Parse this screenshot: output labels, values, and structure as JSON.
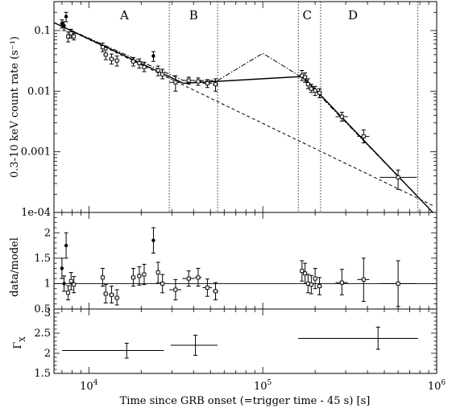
{
  "chart_data": [
    {
      "type": "line",
      "panel": "light-curve",
      "xlabel": "Time since GRB onset (=trigger time - 45 s) [s]",
      "ylabel": "0.3-10 keV count rate (s⁻¹)",
      "xscale": "log",
      "yscale": "log",
      "xlim": [
        6300,
        1000000
      ],
      "ylim": [
        0.0001,
        0.3
      ],
      "x_ticks": [
        {
          "v": 10000,
          "label": "10",
          "exp": "4"
        },
        {
          "v": 100000,
          "label": "10",
          "exp": "5"
        },
        {
          "v": 1000000,
          "label": "10",
          "exp": "6"
        }
      ],
      "y_ticks": [
        {
          "v": 0.1,
          "label": "0.1"
        },
        {
          "v": 0.01,
          "label": "0.01"
        },
        {
          "v": 0.001,
          "label": "0.001"
        },
        {
          "v": 0.0001,
          "label": "1e-04"
        }
      ],
      "region_boundaries": [
        29000,
        55000,
        160000,
        215000,
        780000
      ],
      "regions": [
        {
          "label": "A",
          "x": 16000
        },
        {
          "label": "B",
          "x": 40000
        },
        {
          "label": "C",
          "x": 180000
        },
        {
          "label": "D",
          "x": 330000
        }
      ],
      "points": [
        {
          "x": 7000,
          "y": 0.13,
          "xlo": 6900,
          "xhi": 7100,
          "ylo": 0.11,
          "yhi": 0.15,
          "marker": "dot"
        },
        {
          "x": 7200,
          "y": 0.12,
          "xlo": 7100,
          "xhi": 7300,
          "ylo": 0.1,
          "yhi": 0.14,
          "marker": "dot"
        },
        {
          "x": 7400,
          "y": 0.17,
          "xlo": 7300,
          "xhi": 7500,
          "ylo": 0.14,
          "yhi": 0.2,
          "marker": "dot"
        },
        {
          "x": 7600,
          "y": 0.08,
          "xlo": 7450,
          "xhi": 7750,
          "ylo": 0.065,
          "yhi": 0.095,
          "marker": "square"
        },
        {
          "x": 7900,
          "y": 0.09,
          "xlo": 7700,
          "xhi": 8100,
          "ylo": 0.075,
          "yhi": 0.105,
          "marker": "square"
        },
        {
          "x": 8200,
          "y": 0.08,
          "xlo": 8000,
          "xhi": 8400,
          "ylo": 0.07,
          "yhi": 0.09,
          "marker": "square"
        },
        {
          "x": 12000,
          "y": 0.053,
          "xlo": 11700,
          "xhi": 12300,
          "ylo": 0.045,
          "yhi": 0.062,
          "marker": "square"
        },
        {
          "x": 12500,
          "y": 0.04,
          "xlo": 12100,
          "xhi": 12900,
          "ylo": 0.033,
          "yhi": 0.048,
          "marker": "square"
        },
        {
          "x": 13500,
          "y": 0.034,
          "xlo": 13000,
          "xhi": 14000,
          "ylo": 0.028,
          "yhi": 0.041,
          "marker": "square"
        },
        {
          "x": 14500,
          "y": 0.032,
          "xlo": 14000,
          "xhi": 15000,
          "ylo": 0.026,
          "yhi": 0.038,
          "marker": "square"
        },
        {
          "x": 18000,
          "y": 0.031,
          "xlo": 17400,
          "xhi": 18600,
          "ylo": 0.026,
          "yhi": 0.036,
          "marker": "square"
        },
        {
          "x": 19500,
          "y": 0.029,
          "xlo": 18900,
          "xhi": 20100,
          "ylo": 0.024,
          "yhi": 0.034,
          "marker": "square"
        },
        {
          "x": 20800,
          "y": 0.025,
          "xlo": 20200,
          "xhi": 21400,
          "ylo": 0.021,
          "yhi": 0.03,
          "marker": "square"
        },
        {
          "x": 23500,
          "y": 0.038,
          "xlo": 23000,
          "xhi": 24000,
          "ylo": 0.031,
          "yhi": 0.045,
          "marker": "dot"
        },
        {
          "x": 25000,
          "y": 0.022,
          "xlo": 24300,
          "xhi": 25700,
          "ylo": 0.018,
          "yhi": 0.026,
          "marker": "square"
        },
        {
          "x": 26500,
          "y": 0.019,
          "xlo": 25700,
          "xhi": 27300,
          "ylo": 0.016,
          "yhi": 0.023,
          "marker": "square"
        },
        {
          "x": 31500,
          "y": 0.014,
          "xlo": 29000,
          "xhi": 34000,
          "ylo": 0.01,
          "yhi": 0.018,
          "marker": "square"
        },
        {
          "x": 37500,
          "y": 0.015,
          "xlo": 34500,
          "xhi": 40500,
          "ylo": 0.013,
          "yhi": 0.017,
          "marker": "square"
        },
        {
          "x": 42500,
          "y": 0.0145,
          "xlo": 40500,
          "xhi": 44500,
          "ylo": 0.0125,
          "yhi": 0.0165,
          "marker": "square"
        },
        {
          "x": 48000,
          "y": 0.0135,
          "xlo": 45000,
          "xhi": 51000,
          "ylo": 0.0115,
          "yhi": 0.0155,
          "marker": "square"
        },
        {
          "x": 53500,
          "y": 0.013,
          "xlo": 51500,
          "xhi": 55500,
          "ylo": 0.01,
          "yhi": 0.016,
          "marker": "square"
        },
        {
          "x": 168000,
          "y": 0.018,
          "xlo": 163000,
          "xhi": 173000,
          "ylo": 0.015,
          "yhi": 0.022,
          "marker": "square"
        },
        {
          "x": 175000,
          "y": 0.017,
          "xlo": 170000,
          "xhi": 180000,
          "ylo": 0.014,
          "yhi": 0.02,
          "marker": "square"
        },
        {
          "x": 182000,
          "y": 0.013,
          "xlo": 177000,
          "xhi": 187000,
          "ylo": 0.011,
          "yhi": 0.016,
          "marker": "square"
        },
        {
          "x": 190000,
          "y": 0.011,
          "xlo": 184000,
          "xhi": 196000,
          "ylo": 0.0095,
          "yhi": 0.013,
          "marker": "square"
        },
        {
          "x": 200000,
          "y": 0.0102,
          "xlo": 194000,
          "xhi": 206000,
          "ylo": 0.0085,
          "yhi": 0.012,
          "marker": "square"
        },
        {
          "x": 212000,
          "y": 0.0094,
          "xlo": 205000,
          "xhi": 219000,
          "ylo": 0.0078,
          "yhi": 0.011,
          "marker": "square"
        },
        {
          "x": 285000,
          "y": 0.0038,
          "xlo": 262000,
          "xhi": 308000,
          "ylo": 0.0032,
          "yhi": 0.0045,
          "marker": "square"
        },
        {
          "x": 380000,
          "y": 0.0018,
          "xlo": 350000,
          "xhi": 410000,
          "ylo": 0.0014,
          "yhi": 0.0023,
          "marker": "square"
        },
        {
          "x": 600000,
          "y": 0.00038,
          "xlo": 470000,
          "xhi": 770000,
          "ylo": 0.00024,
          "yhi": 0.0005,
          "marker": "square"
        }
      ],
      "models": [
        {
          "style": "solid",
          "points": [
            [
              6300,
              0.135
            ],
            [
              35000,
              0.0135
            ],
            [
              170000,
              0.0175
            ],
            [
              950000,
              0.0001
            ]
          ]
        },
        {
          "style": "dashed",
          "points": [
            [
              6300,
              0.135
            ],
            [
              950000,
              0.00013
            ]
          ]
        },
        {
          "style": "dashdot",
          "points": [
            [
              6300,
              0.135
            ],
            [
              35000,
              0.015
            ],
            [
              55000,
              0.015
            ],
            [
              100000,
              0.042
            ],
            [
              170000,
              0.0165
            ],
            [
              950000,
              0.0001
            ]
          ]
        }
      ]
    },
    {
      "type": "scatter",
      "panel": "ratio",
      "ylabel": "data/model",
      "xscale": "log",
      "xlim": [
        6300,
        1000000
      ],
      "ylim": [
        0.5,
        2.4
      ],
      "reference_line": 1,
      "y_ticks": [
        {
          "v": 0.5,
          "label": "0.5"
        },
        {
          "v": 1,
          "label": "1"
        },
        {
          "v": 1.5,
          "label": "1.5"
        },
        {
          "v": 2,
          "label": "2"
        }
      ],
      "points": [
        {
          "x": 7000,
          "y": 1.3,
          "xlo": 6900,
          "xhi": 7100,
          "ylo": 1.1,
          "yhi": 1.5,
          "marker": "dot"
        },
        {
          "x": 7200,
          "y": 1.0,
          "xlo": 7100,
          "xhi": 7300,
          "ylo": 0.85,
          "yhi": 1.15,
          "marker": "dot"
        },
        {
          "x": 7400,
          "y": 1.75,
          "xlo": 7300,
          "xhi": 7500,
          "ylo": 1.5,
          "yhi": 2.0,
          "marker": "dot"
        },
        {
          "x": 7600,
          "y": 0.82,
          "xlo": 7450,
          "xhi": 7750,
          "ylo": 0.68,
          "yhi": 0.96,
          "marker": "square"
        },
        {
          "x": 7900,
          "y": 1.05,
          "xlo": 7700,
          "xhi": 8100,
          "ylo": 0.88,
          "yhi": 1.22,
          "marker": "square"
        },
        {
          "x": 8200,
          "y": 0.98,
          "xlo": 8000,
          "xhi": 8400,
          "ylo": 0.82,
          "yhi": 1.14,
          "marker": "square"
        },
        {
          "x": 12000,
          "y": 1.12,
          "xlo": 11700,
          "xhi": 12300,
          "ylo": 0.95,
          "yhi": 1.3,
          "marker": "square"
        },
        {
          "x": 12500,
          "y": 0.8,
          "xlo": 12100,
          "xhi": 12900,
          "ylo": 0.62,
          "yhi": 0.98,
          "marker": "square"
        },
        {
          "x": 13500,
          "y": 0.78,
          "xlo": 13000,
          "xhi": 14000,
          "ylo": 0.62,
          "yhi": 0.95,
          "marker": "square"
        },
        {
          "x": 14500,
          "y": 0.72,
          "xlo": 14000,
          "xhi": 15000,
          "ylo": 0.58,
          "yhi": 0.88,
          "marker": "square"
        },
        {
          "x": 18000,
          "y": 1.12,
          "xlo": 17400,
          "xhi": 18600,
          "ylo": 0.95,
          "yhi": 1.3,
          "marker": "square"
        },
        {
          "x": 19500,
          "y": 1.15,
          "xlo": 18900,
          "xhi": 20100,
          "ylo": 0.97,
          "yhi": 1.33,
          "marker": "square"
        },
        {
          "x": 20800,
          "y": 1.18,
          "xlo": 20200,
          "xhi": 21400,
          "ylo": 0.98,
          "yhi": 1.38,
          "marker": "square"
        },
        {
          "x": 23500,
          "y": 1.85,
          "xlo": 23000,
          "xhi": 24000,
          "ylo": 1.6,
          "yhi": 2.1,
          "marker": "dot"
        },
        {
          "x": 25000,
          "y": 1.22,
          "xlo": 24300,
          "xhi": 25700,
          "ylo": 1.02,
          "yhi": 1.42,
          "marker": "square"
        },
        {
          "x": 26500,
          "y": 1.0,
          "xlo": 25700,
          "xhi": 27300,
          "ylo": 0.82,
          "yhi": 1.18,
          "marker": "square"
        },
        {
          "x": 31500,
          "y": 0.88,
          "xlo": 29000,
          "xhi": 34000,
          "ylo": 0.68,
          "yhi": 1.08,
          "marker": "square"
        },
        {
          "x": 37500,
          "y": 1.1,
          "xlo": 34500,
          "xhi": 40500,
          "ylo": 0.95,
          "yhi": 1.25,
          "marker": "square"
        },
        {
          "x": 42500,
          "y": 1.12,
          "xlo": 40500,
          "xhi": 44500,
          "ylo": 0.95,
          "yhi": 1.3,
          "marker": "square"
        },
        {
          "x": 48000,
          "y": 0.92,
          "xlo": 45000,
          "xhi": 51000,
          "ylo": 0.75,
          "yhi": 1.09,
          "marker": "square"
        },
        {
          "x": 53500,
          "y": 0.85,
          "xlo": 51500,
          "xhi": 55500,
          "ylo": 0.68,
          "yhi": 1.02,
          "marker": "square"
        },
        {
          "x": 168000,
          "y": 1.25,
          "xlo": 163000,
          "xhi": 173000,
          "ylo": 1.05,
          "yhi": 1.45,
          "marker": "square"
        },
        {
          "x": 175000,
          "y": 1.2,
          "xlo": 170000,
          "xhi": 180000,
          "ylo": 1.0,
          "yhi": 1.4,
          "marker": "square"
        },
        {
          "x": 182000,
          "y": 1.0,
          "xlo": 177000,
          "xhi": 187000,
          "ylo": 0.82,
          "yhi": 1.18,
          "marker": "square"
        },
        {
          "x": 190000,
          "y": 0.98,
          "xlo": 184000,
          "xhi": 196000,
          "ylo": 0.8,
          "yhi": 1.16,
          "marker": "square"
        },
        {
          "x": 200000,
          "y": 1.1,
          "xlo": 194000,
          "xhi": 206000,
          "ylo": 0.9,
          "yhi": 1.3,
          "marker": "square"
        },
        {
          "x": 212000,
          "y": 0.95,
          "xlo": 205000,
          "xhi": 219000,
          "ylo": 0.78,
          "yhi": 1.12,
          "marker": "square"
        },
        {
          "x": 285000,
          "y": 1.02,
          "xlo": 262000,
          "xhi": 308000,
          "ylo": 0.78,
          "yhi": 1.28,
          "marker": "square"
        },
        {
          "x": 380000,
          "y": 1.08,
          "xlo": 350000,
          "xhi": 410000,
          "ylo": 0.65,
          "yhi": 1.5,
          "marker": "square"
        },
        {
          "x": 600000,
          "y": 1.0,
          "xlo": 470000,
          "xhi": 770000,
          "ylo": 0.55,
          "yhi": 1.45,
          "marker": "square"
        }
      ]
    },
    {
      "type": "scatter",
      "panel": "photon-index",
      "ylabel": "ΓX",
      "xscale": "log",
      "xlim": [
        6300,
        1000000
      ],
      "ylim": [
        1.5,
        3.1
      ],
      "y_ticks": [
        {
          "v": 1.5,
          "label": "1.5"
        },
        {
          "v": 2,
          "label": "2"
        },
        {
          "v": 2.5,
          "label": "2.5"
        },
        {
          "v": 3,
          "label": "3"
        }
      ],
      "points": [
        {
          "x": 16500,
          "y": 2.07,
          "xlo": 7000,
          "xhi": 27000,
          "ylo": 1.88,
          "yhi": 2.25
        },
        {
          "x": 41000,
          "y": 2.2,
          "xlo": 29500,
          "xhi": 55000,
          "ylo": 1.95,
          "yhi": 2.45
        },
        {
          "x": 460000,
          "y": 2.37,
          "xlo": 160000,
          "xhi": 780000,
          "ylo": 2.1,
          "yhi": 2.65
        }
      ]
    }
  ]
}
